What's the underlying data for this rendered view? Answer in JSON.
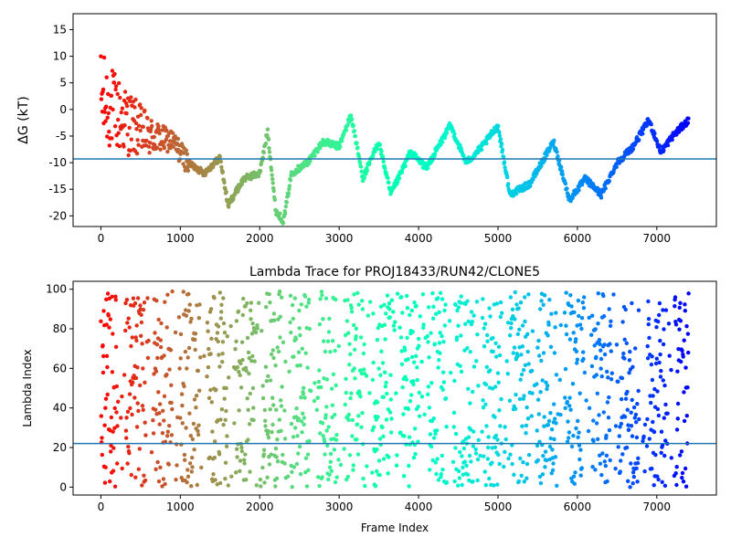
{
  "chart_data": [
    {
      "type": "scatter",
      "title": "",
      "xlabel": "",
      "ylabel": "ΔG (kT)",
      "xlim": [
        -350,
        7750
      ],
      "ylim": [
        -22,
        18
      ],
      "xticks": [
        0,
        1000,
        2000,
        3000,
        4000,
        5000,
        6000,
        7000
      ],
      "yticks": [
        -20,
        -15,
        -10,
        -5,
        0,
        5,
        10,
        15
      ],
      "hline": -9.3,
      "hline_color": "#1f77b4",
      "colormap": "rainbow (reversed: early frames red, late frames purple)",
      "x_end": 7400,
      "trend": [
        [
          0,
          2
        ],
        [
          300,
          -2
        ],
        [
          600,
          -5
        ],
        [
          900,
          -6
        ],
        [
          1100,
          -10
        ],
        [
          1300,
          -12
        ],
        [
          1500,
          -9
        ],
        [
          1600,
          -18
        ],
        [
          1800,
          -13
        ],
        [
          2000,
          -12
        ],
        [
          2100,
          -4
        ],
        [
          2200,
          -19
        ],
        [
          2300,
          -21
        ],
        [
          2400,
          -12
        ],
        [
          2600,
          -10
        ],
        [
          2800,
          -6
        ],
        [
          3000,
          -7
        ],
        [
          3150,
          -1
        ],
        [
          3300,
          -13
        ],
        [
          3500,
          -6
        ],
        [
          3650,
          -16
        ],
        [
          3900,
          -8
        ],
        [
          4100,
          -11
        ],
        [
          4400,
          -3
        ],
        [
          4600,
          -10
        ],
        [
          4800,
          -7
        ],
        [
          5000,
          -3
        ],
        [
          5150,
          -16
        ],
        [
          5400,
          -14
        ],
        [
          5700,
          -6
        ],
        [
          5900,
          -17
        ],
        [
          6100,
          -13
        ],
        [
          6300,
          -16
        ],
        [
          6500,
          -10
        ],
        [
          6700,
          -7
        ],
        [
          6900,
          -2
        ],
        [
          7050,
          -8
        ],
        [
          7200,
          -5
        ],
        [
          7400,
          -2
        ]
      ]
    },
    {
      "type": "scatter",
      "title": "Lambda Trace for PROJ18433/RUN42/CLONE5",
      "xlabel": "Frame Index",
      "ylabel": "Lambda Index",
      "xlim": [
        -350,
        7750
      ],
      "ylim": [
        -4,
        104
      ],
      "xticks": [
        0,
        1000,
        2000,
        3000,
        4000,
        5000,
        6000,
        7000
      ],
      "yticks": [
        0,
        20,
        40,
        60,
        80,
        100
      ],
      "hline": 22,
      "hline_color": "#1f77b4",
      "colormap": "rainbow (reversed: early frames red, late frames purple)",
      "x_end": 7400,
      "lambda_range": [
        0,
        99
      ]
    }
  ]
}
